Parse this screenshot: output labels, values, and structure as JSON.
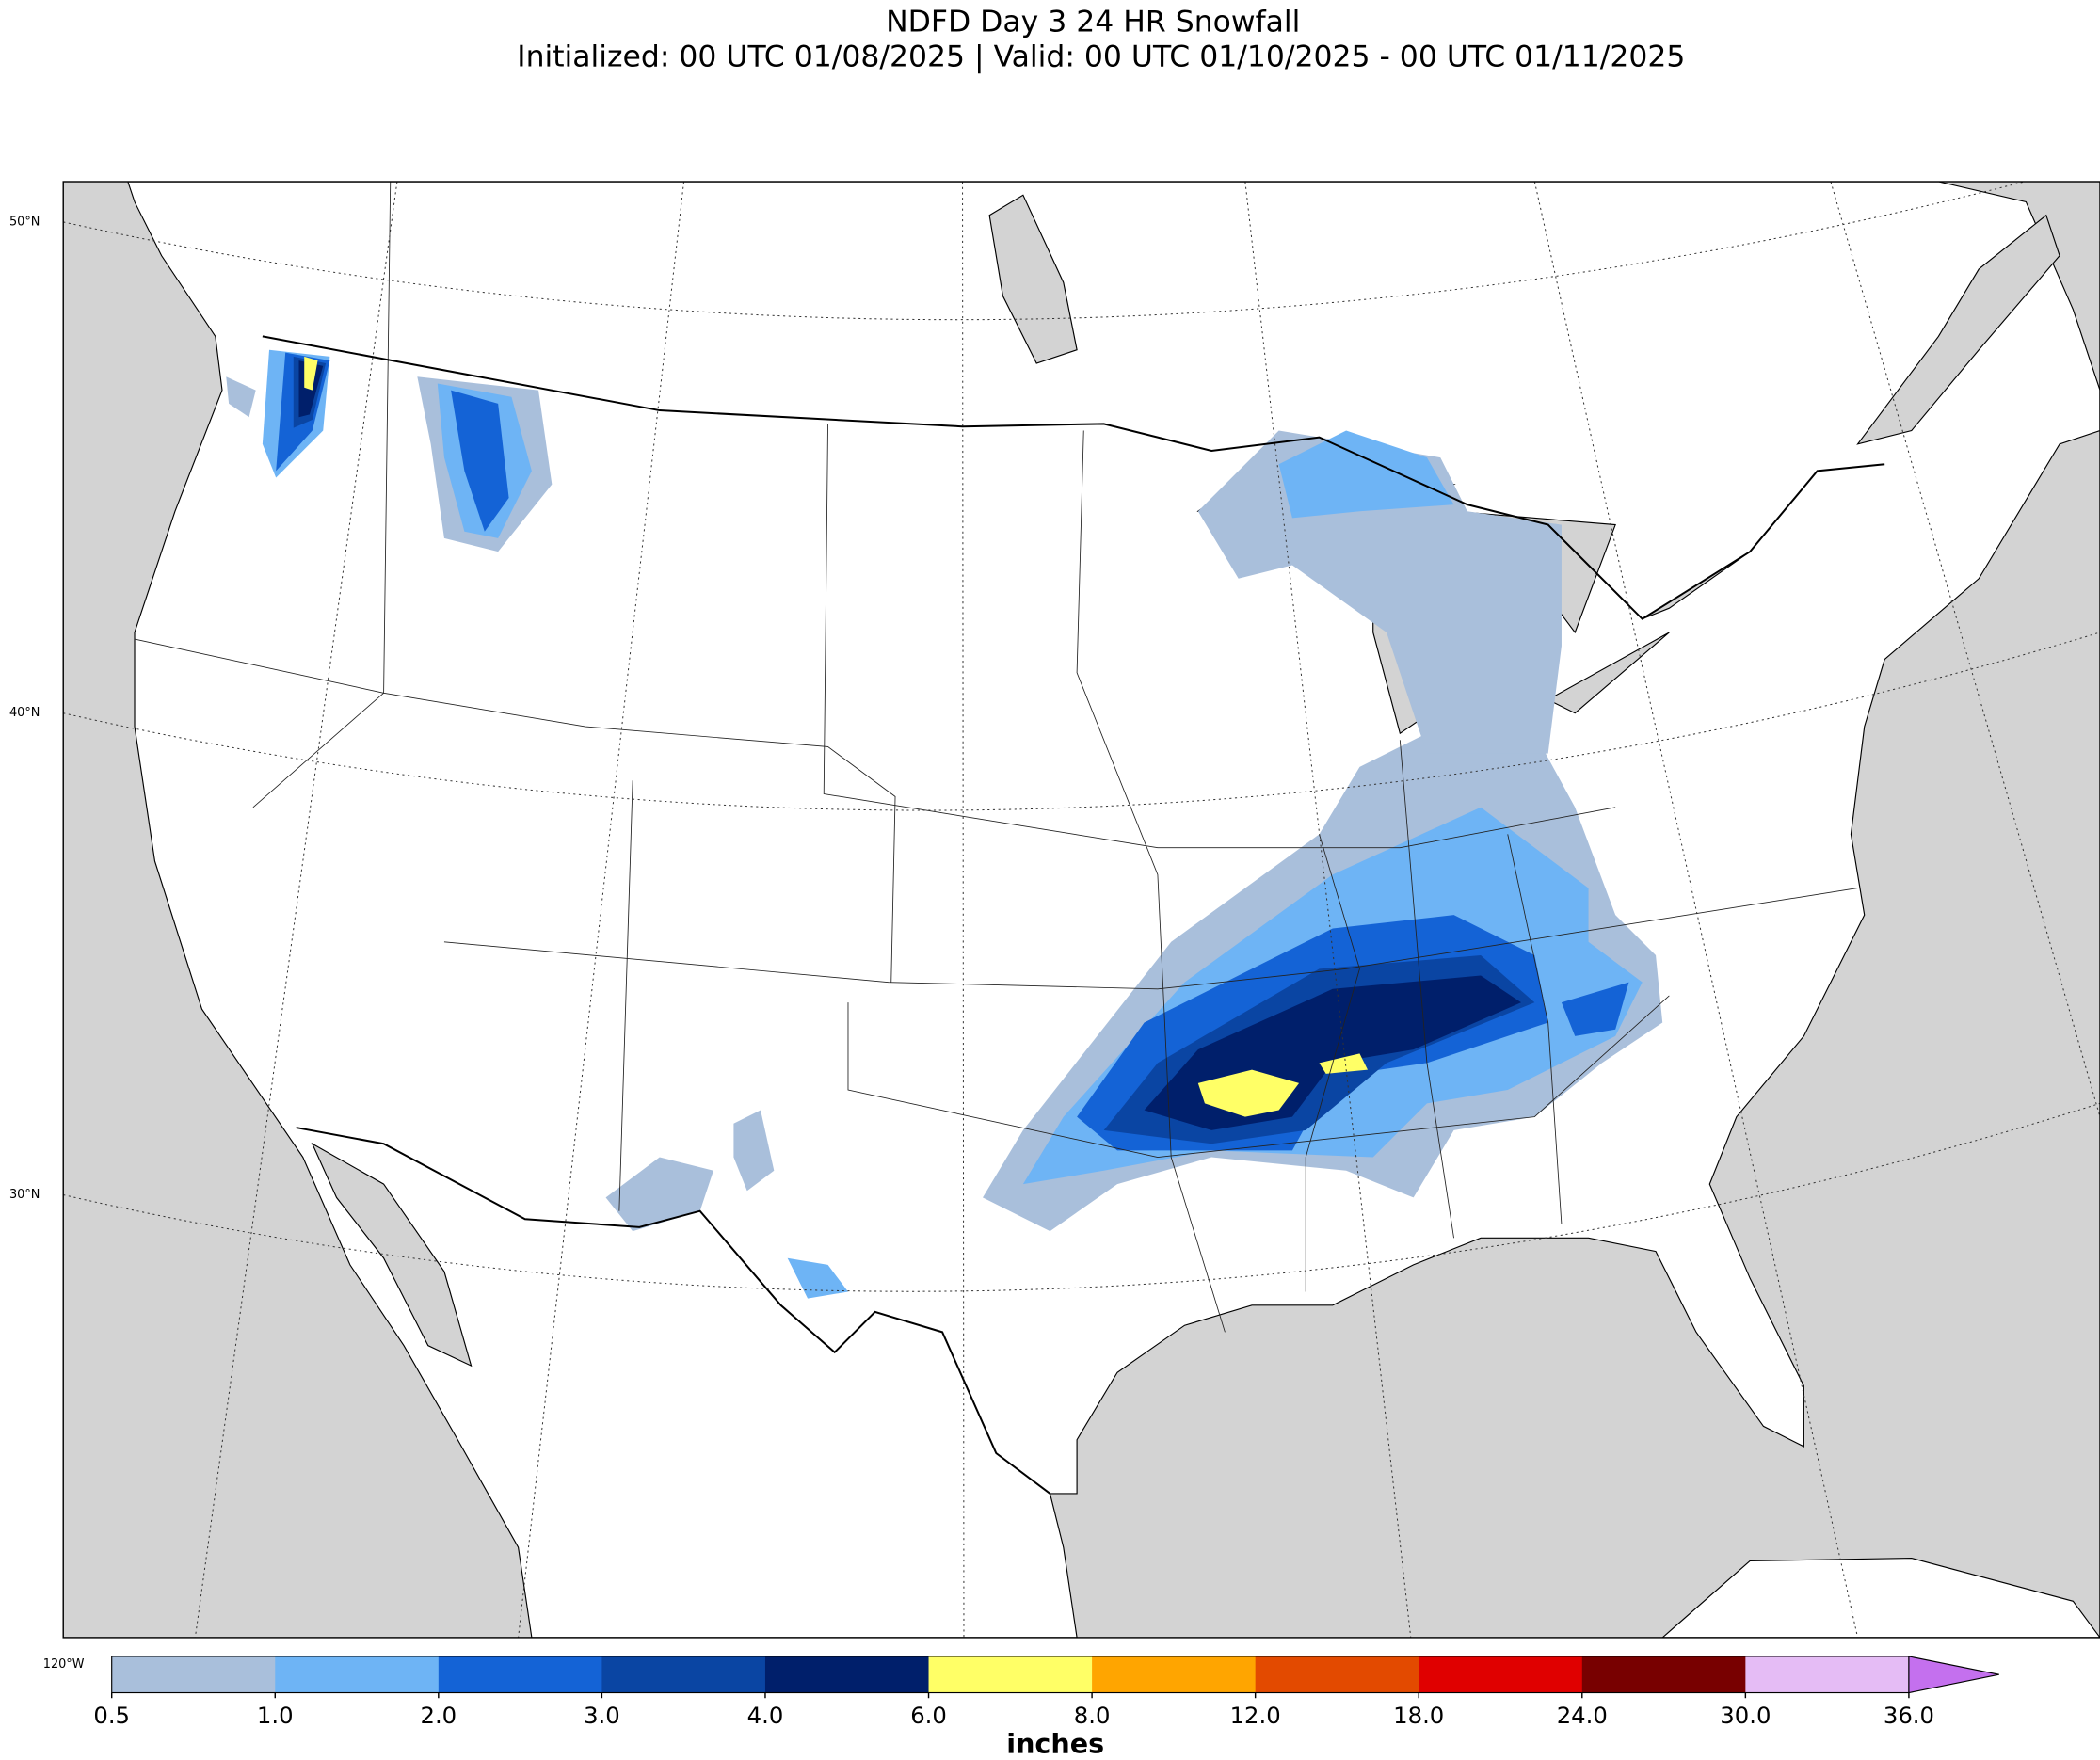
{
  "title": "NDFD Day 3 24 HR Snowfall",
  "subtitle": "Initialized: 00 UTC 01/08/2025 | Valid: 00 UTC 01/10/2025 - 00 UTC 01/11/2025",
  "map": {
    "lat_labels": [
      "50°N",
      "40°N",
      "30°N"
    ],
    "lon_labels": [
      "120°W"
    ]
  },
  "colorbar": {
    "label": "inches",
    "ticks": [
      0.5,
      {
        "value": 1,
        "label": "1.0"
      },
      {
        "value": 2,
        "label": "2.0"
      },
      {
        "value": 3,
        "label": "3.0"
      },
      {
        "value": 4,
        "label": "4.0"
      },
      {
        "value": 6,
        "label": "6.0"
      },
      {
        "value": 8,
        "label": "8.0"
      },
      {
        "value": 12,
        "label": "12.0"
      },
      {
        "value": 18,
        "label": "18.0"
      },
      {
        "value": 24,
        "label": "24.0"
      },
      {
        "value": 30,
        "label": "30.0"
      },
      {
        "value": 36,
        "label": "36.0"
      }
    ],
    "colors": [
      "#a9bfdb",
      "#6eb4f5",
      "#1463d6",
      "#0a45a3",
      "#001f6b",
      "#ffff66",
      "#ffa500",
      "#e34a00",
      "#e00000",
      "#780000",
      "#e5bcf5"
    ],
    "extend_color": "#c470ee"
  }
}
